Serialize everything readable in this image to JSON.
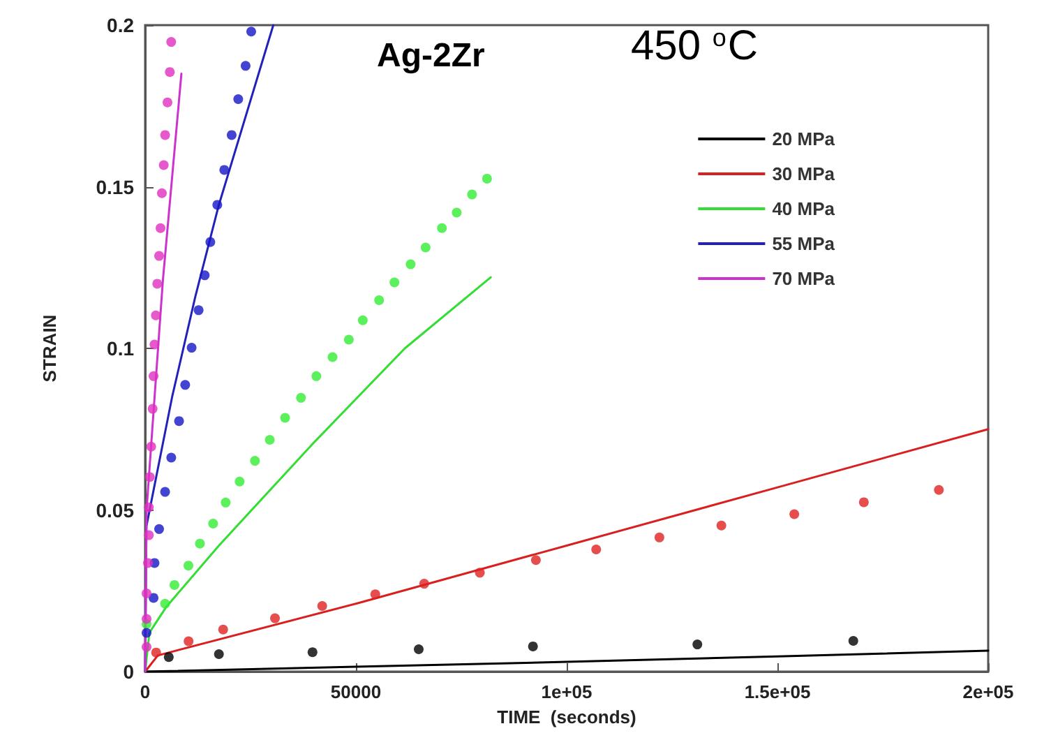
{
  "chart_data": {
    "type": "line",
    "title": "Ag-2Zr",
    "annotations": [
      "450 $^{o}$C"
    ],
    "xlabel": "TIME  (seconds)",
    "ylabel": "STRAIN",
    "xlim": [
      0,
      200000
    ],
    "xticks": [
      0,
      50000,
      {
        "value": 100000,
        "label": "1e+05"
      },
      {
        "value": 150000,
        "label": "1.5e+05"
      },
      {
        "value": 200000,
        "label": "2e+05"
      }
    ],
    "ylim": [
      0,
      0.2
    ],
    "yticks": [
      0,
      0.05,
      0.1,
      0.15,
      0.2
    ],
    "grid": false,
    "legend": "top right",
    "line_style": "solid",
    "series": [
      {
        "name": "20 MPa",
        "marker": "none",
        "color": "#000000",
        "x": [
          0,
          50000,
          100000,
          150000,
          200000
        ],
        "values": [
          0,
          0.0015,
          0.003,
          0.0047,
          0.0065
        ]
      },
      {
        "name": "30 MPa",
        "marker": "none",
        "color": "#d82020",
        "x": [
          0,
          3000,
          50000,
          100000,
          150000,
          200000
        ],
        "values": [
          0,
          0.005,
          0.021,
          0.039,
          0.057,
          0.075
        ]
      },
      {
        "name": "40 MPa",
        "marker": "none",
        "color": "#33dd33",
        "x": [
          0,
          1000,
          5000,
          17500,
          39400,
          61600,
          82000
        ],
        "values": [
          0,
          0.012,
          0.02,
          0.039,
          0.07,
          0.1,
          0.122
        ]
      },
      {
        "name": "55 MPa",
        "marker": "none",
        "color": "#2222bb",
        "x": [
          0,
          300,
          6400,
          11900,
          17400,
          30400
        ],
        "values": [
          0,
          0.045,
          0.085,
          0.116,
          0.144,
          0.2
        ]
      },
      {
        "name": "70 MPa",
        "marker": "none",
        "color": "#cc33cc",
        "x": [
          0,
          330,
          4200,
          8600
        ],
        "values": [
          0,
          0.05,
          0.121,
          0.185
        ]
      },
      {
        "type": "scatter",
        "marker": "circle",
        "color": "#000000",
        "x": [
          5600,
          17500,
          39700,
          64900,
          92000,
          131000,
          168000
        ],
        "values": [
          0.0045,
          0.0054,
          0.006,
          0.0069,
          0.0078,
          0.0084,
          0.0095
        ]
      },
      {
        "type": "scatter",
        "marker": "circle",
        "color": "#e02020",
        "x": [
          2600,
          10300,
          18500,
          30800,
          42000,
          54600,
          66200,
          79400,
          92700,
          107000,
          122000,
          136700,
          154000,
          170500,
          188300
        ],
        "values": [
          0.0059,
          0.0094,
          0.013,
          0.0165,
          0.0203,
          0.0239,
          0.0272,
          0.0306,
          0.0345,
          0.0378,
          0.0415,
          0.0452,
          0.0487,
          0.0524,
          0.0562
        ]
      },
      {
        "type": "scatter",
        "marker": "circle",
        "color": "#33ee33",
        "x": [
          330,
          4730,
          6950,
          10260,
          12990,
          16120,
          19100,
          22410,
          26050,
          29560,
          33200,
          36970,
          40610,
          44450,
          48320,
          51630,
          55500,
          59140,
          62980,
          66530,
          70400,
          73910,
          77550,
          81100
        ],
        "values": [
          0.0147,
          0.021,
          0.0268,
          0.0328,
          0.0396,
          0.0458,
          0.0523,
          0.0588,
          0.0652,
          0.0717,
          0.0785,
          0.0847,
          0.0914,
          0.0973,
          0.1027,
          0.1087,
          0.1149,
          0.1204,
          0.126,
          0.1312,
          0.1372,
          0.142,
          0.1476,
          0.1525
        ]
      },
      {
        "type": "scatter",
        "marker": "circle",
        "color": "#1515c8",
        "x": [
          330,
          1990,
          2220,
          3310,
          4730,
          6190,
          8040,
          9500,
          11020,
          12680,
          14130,
          15460,
          17110,
          18770,
          20520,
          22080,
          23830,
          25160
        ],
        "values": [
          0.012,
          0.0228,
          0.0336,
          0.0441,
          0.0556,
          0.0662,
          0.0775,
          0.0887,
          0.1002,
          0.1118,
          0.1226,
          0.1329,
          0.1444,
          0.1552,
          0.166,
          0.1771,
          0.1874,
          0.198
        ]
      },
      {
        "type": "scatter",
        "marker": "circle",
        "color": "#e030c0",
        "x": [
          330,
          330,
          330,
          660,
          880,
          880,
          1100,
          1430,
          1770,
          1990,
          2210,
          2540,
          2870,
          3310,
          3640,
          3970,
          4410,
          4740,
          5300,
          5850,
          6180
        ],
        "values": [
          0.0076,
          0.0163,
          0.0242,
          0.0336,
          0.0422,
          0.0508,
          0.0602,
          0.0696,
          0.0813,
          0.0914,
          0.1012,
          0.1102,
          0.12,
          0.1286,
          0.1372,
          0.148,
          0.1567,
          0.166,
          0.1761,
          0.1855,
          0.1948
        ]
      }
    ]
  }
}
